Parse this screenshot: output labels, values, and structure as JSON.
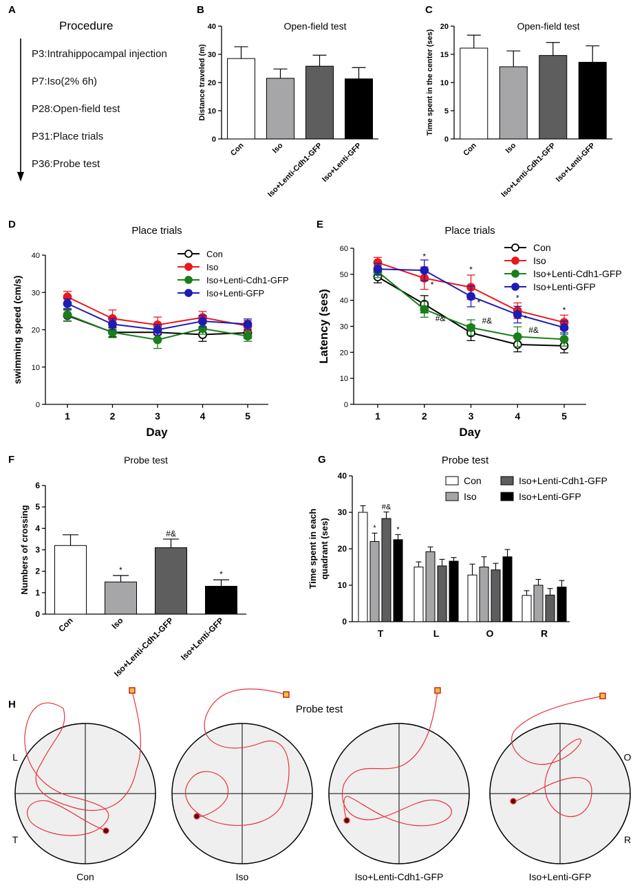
{
  "panels": {
    "A": {
      "letter": "A",
      "title": "Procedure",
      "steps": [
        "P3:Intrahippocampal injection",
        "P7:Iso(2% 6h)",
        "P28:Open-field test",
        "P31:Place trials",
        "P36:Probe test"
      ]
    },
    "B": {
      "letter": "B"
    },
    "C": {
      "letter": "C"
    },
    "D": {
      "letter": "D"
    },
    "E": {
      "letter": "E"
    },
    "F": {
      "letter": "F"
    },
    "G": {
      "letter": "G"
    },
    "H": {
      "letter": "H"
    }
  },
  "colors": {
    "con": "#ffffff",
    "iso": "#a6a6a8",
    "cdh1": "#5e5e5e",
    "gfp": "#000000",
    "line_con": "#000000",
    "line_iso": "#e8191e",
    "line_cdh1": "#1a7f1a",
    "line_gfp": "#1d1db4",
    "track": "#e8313a",
    "pool_bg": "#efefef"
  },
  "chart_data": [
    {
      "id": "B",
      "type": "bar",
      "title": "Open-field test",
      "ylabel": "Distance traveled (m)",
      "ylim": [
        0,
        40
      ],
      "yticks": [
        0,
        10,
        20,
        30,
        40
      ],
      "categories": [
        "Con",
        "Iso",
        "Iso+Lenti-Cdh1-GFP",
        "Iso+Lenti-GFP"
      ],
      "values": [
        28.5,
        21.5,
        25.8,
        21.3
      ],
      "errors": [
        4.2,
        3.3,
        3.9,
        4.0
      ]
    },
    {
      "id": "C",
      "type": "bar",
      "title": "Open-field test",
      "ylabel": "Time spent in the center (ses)",
      "ylim": [
        0,
        20
      ],
      "yticks": [
        0,
        5,
        10,
        15,
        20
      ],
      "categories": [
        "Con",
        "Iso",
        "Iso+Lenti-Cdh1-GFP",
        "Iso+Lenti-GFP"
      ],
      "values": [
        16.1,
        12.8,
        14.8,
        13.6
      ],
      "errors": [
        2.3,
        2.8,
        2.3,
        2.9
      ]
    },
    {
      "id": "D",
      "type": "line",
      "title": "Place trials",
      "xlabel": "Day",
      "ylabel": "swimming speed (cm/s)",
      "x": [
        1,
        2,
        3,
        4,
        5
      ],
      "ylim": [
        0,
        40
      ],
      "yticks": [
        0,
        10,
        20,
        30,
        40
      ],
      "legend": [
        "Con",
        "Iso",
        "Iso+Lenti-Cdh1-GFP",
        "Iso+Lenti-GFP"
      ],
      "series": [
        {
          "name": "Con",
          "values": [
            23.8,
            19.3,
            19.3,
            18.7,
            19.2
          ],
          "errors": [
            1.5,
            1.2,
            1.6,
            1.8,
            1.5
          ]
        },
        {
          "name": "Iso",
          "values": [
            28.8,
            23.0,
            21.3,
            23.3,
            21.0
          ],
          "errors": [
            1.5,
            2.3,
            2.1,
            1.6,
            1.5
          ]
        },
        {
          "name": "Iso+Lenti-Cdh1-GFP",
          "values": [
            24.0,
            19.3,
            17.3,
            20.3,
            18.3
          ],
          "errors": [
            1.6,
            1.4,
            2.3,
            1.5,
            1.4
          ]
        },
        {
          "name": "Iso+Lenti-GFP",
          "values": [
            27.0,
            21.5,
            20.0,
            22.3,
            21.5
          ],
          "errors": [
            1.3,
            1.5,
            1.4,
            1.5,
            1.4
          ]
        }
      ]
    },
    {
      "id": "E",
      "type": "line",
      "title": "Place trials",
      "xlabel": "Day",
      "ylabel": "Latency (ses)",
      "x": [
        1,
        2,
        3,
        4,
        5
      ],
      "ylim": [
        0,
        60
      ],
      "yticks": [
        0,
        10,
        20,
        30,
        40,
        50,
        60
      ],
      "legend": [
        "Con",
        "Iso",
        "Iso+Lenti-Cdh1-GFP",
        "Iso+Lenti-GFP"
      ],
      "series": [
        {
          "name": "Con",
          "values": [
            49.0,
            38.5,
            27.5,
            23.0,
            22.5
          ],
          "errors": [
            2.3,
            3.3,
            3.0,
            2.8,
            2.7
          ]
        },
        {
          "name": "Iso",
          "values": [
            54.5,
            48.5,
            45.0,
            36.0,
            31.5
          ],
          "errors": [
            2.0,
            4.3,
            4.7,
            3.0,
            2.8
          ]
        },
        {
          "name": "Iso+Lenti-Cdh1-GFP",
          "values": [
            51.0,
            36.5,
            29.5,
            26.0,
            25.0
          ],
          "errors": [
            2.3,
            3.0,
            3.0,
            3.8,
            2.6
          ]
        },
        {
          "name": "Iso+Lenti-GFP",
          "values": [
            52.0,
            51.5,
            41.5,
            34.5,
            29.5
          ],
          "errors": [
            2.2,
            4.0,
            4.0,
            3.2,
            2.5
          ]
        }
      ],
      "annotations": [
        {
          "text": "*",
          "day": 2,
          "value": 55.8
        },
        {
          "text": "*",
          "day": 2,
          "value": 45.0,
          "dx": 9
        },
        {
          "text": "#&",
          "day": 2,
          "value": 32.0,
          "dx": 16
        },
        {
          "text": "*",
          "day": 3,
          "value": 50.8
        },
        {
          "text": "*",
          "day": 3,
          "value": 38.0,
          "dx": 9
        },
        {
          "text": "#&",
          "day": 3,
          "value": 31.0,
          "dx": 16
        },
        {
          "text": "*",
          "day": 4,
          "value": 39.8
        },
        {
          "text": "*",
          "day": 4,
          "value": 32.0,
          "dx": 9
        },
        {
          "text": "#&",
          "day": 4,
          "value": 27.5,
          "dx": 16
        },
        {
          "text": "*",
          "day": 5,
          "value": 35.2
        }
      ]
    },
    {
      "id": "F",
      "type": "bar",
      "title": "Probe test",
      "ylabel": "Numbers of crossing",
      "ylim": [
        0,
        6
      ],
      "yticks": [
        0,
        1,
        2,
        3,
        4,
        5,
        6
      ],
      "categories": [
        "Con",
        "Iso",
        "Iso+Lenti-Cdh1-GFP",
        "Iso+Lenti-GFP"
      ],
      "values": [
        3.2,
        1.5,
        3.1,
        1.3
      ],
      "errors": [
        0.5,
        0.3,
        0.4,
        0.3
      ],
      "annotations": [
        "",
        "*",
        "#&",
        "*"
      ]
    },
    {
      "id": "G",
      "type": "bar",
      "title": "Probe test",
      "ylabel_lines": [
        "Time spent in each",
        "quadrant (ses)"
      ],
      "ylim": [
        0,
        40
      ],
      "yticks": [
        0,
        10,
        20,
        30,
        40
      ],
      "categories": [
        "T",
        "L",
        "O",
        "R"
      ],
      "legend": [
        "Con",
        "Iso",
        "Iso+Lenti-Cdh1-GFP",
        "Iso+Lenti-GFP"
      ],
      "series": [
        {
          "name": "Con",
          "values": [
            30.0,
            15.0,
            12.8,
            7.2
          ],
          "errors": [
            1.8,
            1.4,
            3.0,
            1.3
          ]
        },
        {
          "name": "Iso",
          "values": [
            22.0,
            19.2,
            15.0,
            10.0
          ],
          "errors": [
            2.3,
            1.3,
            2.8,
            1.6
          ]
        },
        {
          "name": "Iso+Lenti-Cdh1-GFP",
          "values": [
            28.3,
            15.3,
            14.2,
            7.3
          ],
          "errors": [
            1.8,
            1.8,
            1.8,
            1.8
          ]
        },
        {
          "name": "Iso+Lenti-GFP",
          "values": [
            22.5,
            16.6,
            17.8,
            9.5
          ],
          "errors": [
            1.4,
            1.0,
            2.0,
            1.8
          ]
        }
      ],
      "annotations": [
        [
          "",
          "*",
          "#&",
          "*"
        ],
        [
          "",
          "",
          "",
          ""
        ],
        [
          "",
          "",
          "",
          ""
        ],
        [
          "",
          "",
          "",
          ""
        ]
      ]
    }
  ],
  "probe_tracks": {
    "title": "Probe test",
    "quadrant_labels": [
      "L",
      "T",
      "O",
      "R"
    ],
    "pools": [
      {
        "label": "Con"
      },
      {
        "label": "Iso"
      },
      {
        "label": "Iso+Lenti-Cdh1-GFP"
      },
      {
        "label": "Iso+Lenti-GFP"
      }
    ]
  }
}
